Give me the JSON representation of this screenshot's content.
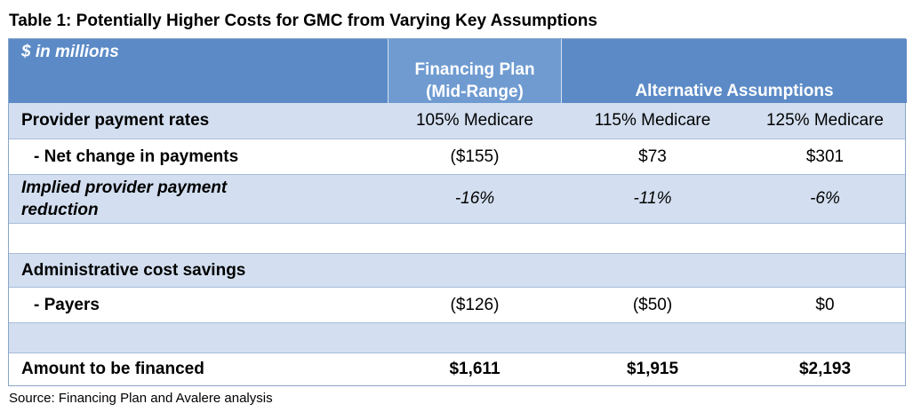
{
  "title": "Table 1: Potentially Higher Costs for GMC from Varying Key Assumptions",
  "header": {
    "units": "$ in millions",
    "col1_line1": "Financing Plan",
    "col1_line2": "(Mid-Range)",
    "alt": "Alternative Assumptions"
  },
  "rows": [
    {
      "label": "Provider payment rates",
      "c1": "105% Medicare",
      "c2": "115% Medicare",
      "c3": "125% Medicare"
    },
    {
      "label": "- Net change in payments",
      "c1": "($155)",
      "c2": "$73",
      "c3": "$301"
    },
    {
      "label_line1": "Implied provider payment",
      "label_line2": "reduction",
      "c1": "-16%",
      "c2": "-11%",
      "c3": "-6%"
    },
    {
      "label": "Administrative cost savings"
    },
    {
      "label": "- Payers",
      "c1": "($126)",
      "c2": "($50)",
      "c3": "$0"
    },
    {
      "label": "Amount to be financed",
      "c1": "$1,611",
      "c2": "$1,915",
      "c3": "$2,193"
    }
  ],
  "source": "Source: Financing Plan and Avalere analysis",
  "colors": {
    "header_bg": "#5b8ac6",
    "light_row_bg": "#d3dff0",
    "white_row_bg": "#ffffff"
  }
}
